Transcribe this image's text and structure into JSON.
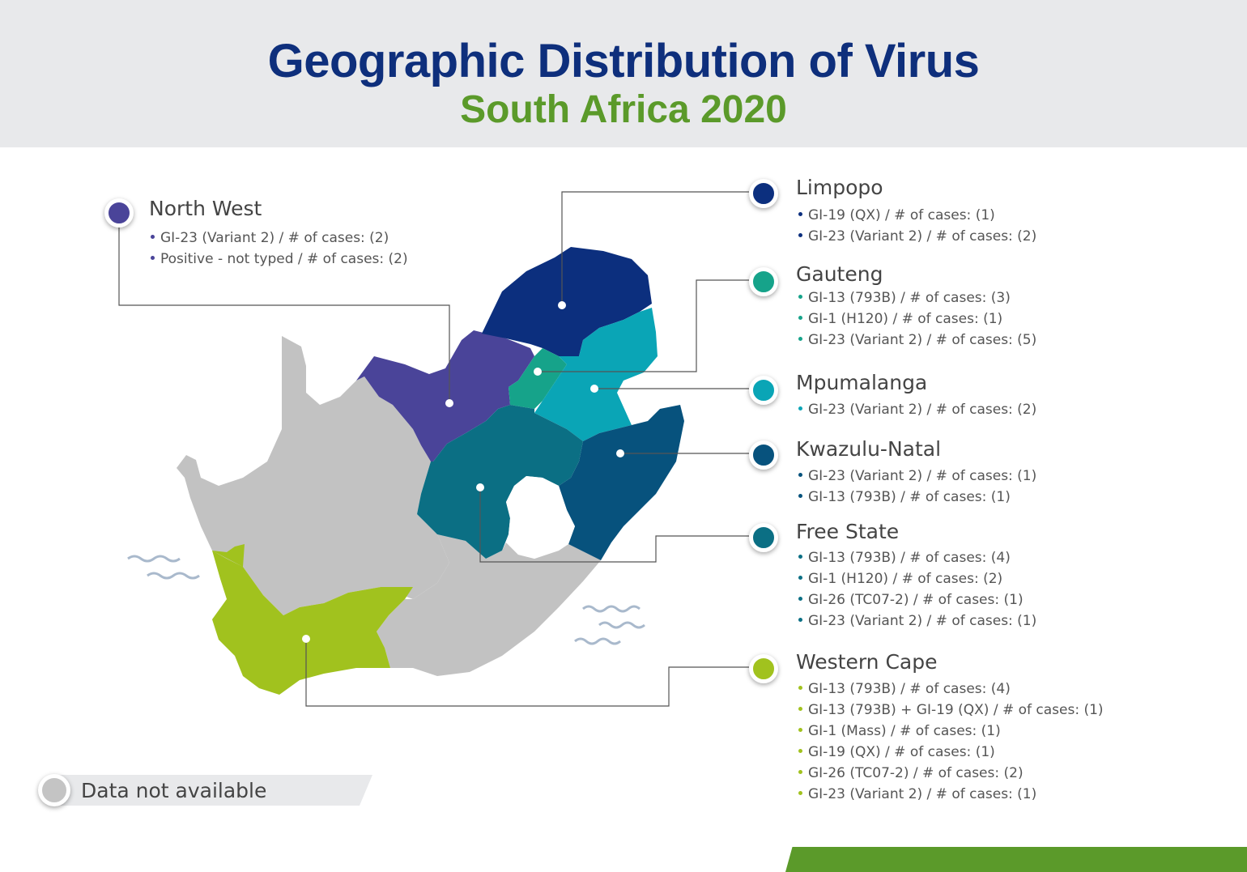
{
  "header": {
    "title": "Geographic Distribution of Virus",
    "subtitle": "South Africa 2020"
  },
  "colors": {
    "header_bg": "#e8e9eb",
    "title": "#0e2f7c",
    "subtitle": "#5b9a2a",
    "data_not_available": "#c4c4c4",
    "footer_bar": "#5b9a2a"
  },
  "regions": {
    "north_west": {
      "name": "North West",
      "color": "#4a4499",
      "entries": [
        "GI-23 (Variant 2) / # of cases: (2)",
        "Positive - not typed / # of cases: (2)"
      ]
    },
    "limpopo": {
      "name": "Limpopo",
      "color": "#0c2f7e",
      "entries": [
        "GI-19 (QX) / # of cases: (1)",
        "GI-23 (Variant 2) / # of cases: (2)"
      ]
    },
    "gauteng": {
      "name": "Gauteng",
      "color": "#16a38a",
      "entries": [
        "GI-13 (793B) / # of cases: (3)",
        "GI-1 (H120) / # of cases: (1)",
        "GI-23 (Variant 2) / # of cases: (5)"
      ]
    },
    "mpumalanga": {
      "name": "Mpumalanga",
      "color": "#0aa5b6",
      "entries": [
        "GI-23 (Variant 2) / # of cases: (2)"
      ]
    },
    "kwazulu_natal": {
      "name": "Kwazulu-Natal",
      "color": "#07527d",
      "entries": [
        "GI-23 (Variant 2) / # of cases: (1)",
        "GI-13 (793B) / # of cases: (1)"
      ]
    },
    "free_state": {
      "name": "Free State",
      "color": "#0b6f84",
      "entries": [
        "GI-13 (793B) / # of cases: (4)",
        "GI-1 (H120) / # of cases: (2)",
        "GI-26 (TC07-2) / # of cases: (1)",
        "GI-23 (Variant 2) / # of cases: (1)"
      ]
    },
    "western_cape": {
      "name": "Western Cape",
      "color": "#a1c21e",
      "entries": [
        "GI-13 (793B) / # of cases: (4)",
        "GI-13 (793B) + GI-19 (QX) / # of cases: (1)",
        "GI-1 (Mass) / # of cases: (1)",
        "GI-19 (QX) / # of cases: (1)",
        "GI-26 (TC07-2) / # of cases: (2)",
        "GI-23 (Variant 2) / # of cases: (1)"
      ]
    }
  },
  "legend": {
    "data_not_available": "Data not available"
  }
}
